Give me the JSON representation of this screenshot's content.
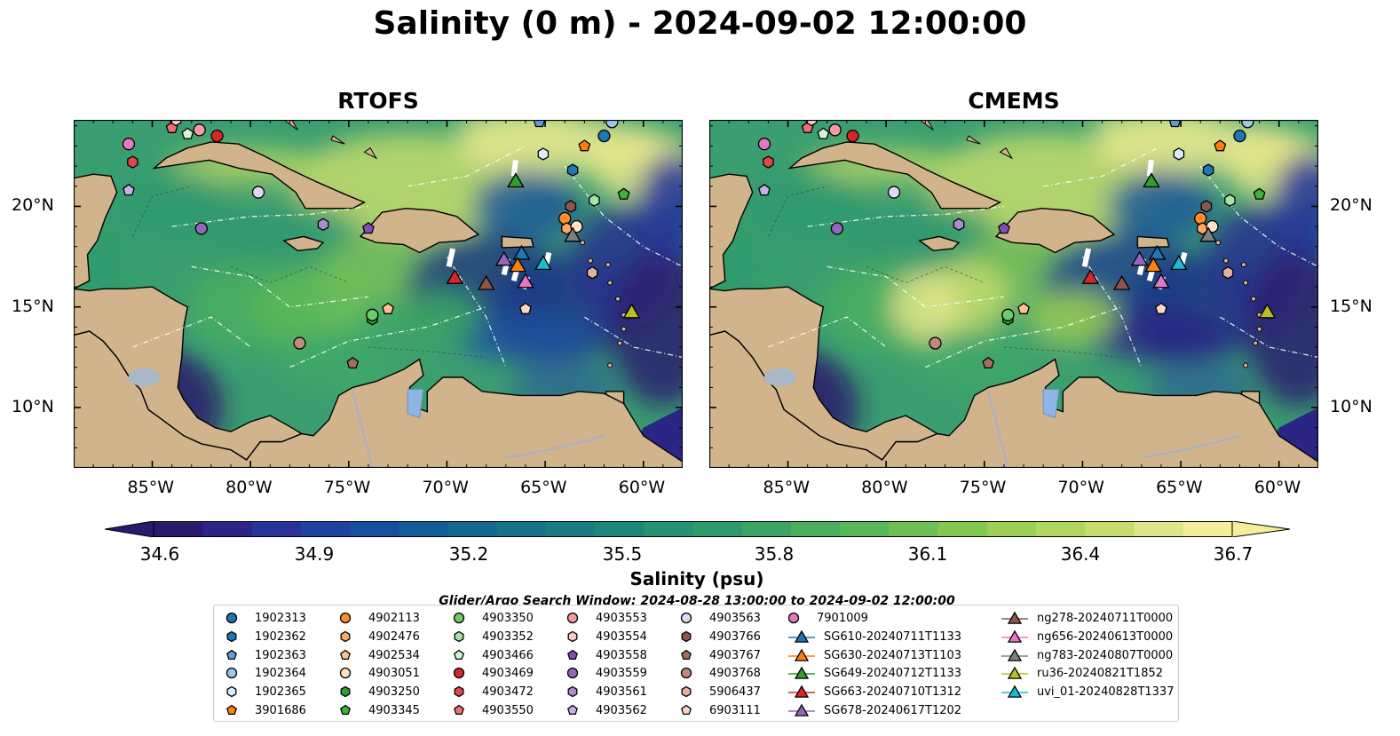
{
  "title": "Salinity (0 m) - 2024-09-02 12:00:00",
  "panels": [
    "RTOFS",
    "CMEMS"
  ],
  "colorbar": {
    "label": "Salinity (psu)",
    "ticks": [
      "34.6",
      "34.9",
      "35.2",
      "35.5",
      "35.8",
      "36.1",
      "36.4",
      "36.7"
    ],
    "colors": [
      "#2a1a6b",
      "#2b2585",
      "#27329a",
      "#1e43a3",
      "#174f9f",
      "#145c98",
      "#14688f",
      "#167286",
      "#1a7c80",
      "#1f877a",
      "#269173",
      "#2f9b6c",
      "#3ca564",
      "#4aae5e",
      "#5ab759",
      "#6ec055",
      "#84c851",
      "#9bcf55",
      "#b1d660",
      "#c7dd70",
      "#dde68a",
      "#f3ee9c"
    ]
  },
  "search_window": "Glider/Argo Search Window: 2024-08-28 13:00:00 to 2024-09-02 12:00:00",
  "chart_data": {
    "type": "heatmap",
    "variable": "Salinity",
    "units": "psu",
    "depth": "0 m",
    "time": "2024-09-02 12:00:00",
    "color_range": [
      34.6,
      36.7
    ],
    "extent": {
      "lon": [
        -89,
        -58
      ],
      "lat": [
        7,
        24.3
      ]
    },
    "lon_ticks": [
      "85°W",
      "80°W",
      "75°W",
      "70°W",
      "65°W",
      "60°W"
    ],
    "lat_ticks": [
      "20°N",
      "15°N",
      "10°N"
    ],
    "argo_floats": [
      {
        "id": "1902313",
        "lon": -62.0,
        "lat": 23.5
      },
      {
        "id": "1902362",
        "lon": -63.6,
        "lat": 21.8
      },
      {
        "id": "1902363",
        "lon": -65.3,
        "lat": 24.2
      },
      {
        "id": "1902364",
        "lon": -61.6,
        "lat": 24.2
      },
      {
        "id": "1902365",
        "lon": -65.1,
        "lat": 22.6
      },
      {
        "id": "3901686",
        "lon": -63.0,
        "lat": 23.0
      },
      {
        "id": "4902113",
        "lon": -64.0,
        "lat": 19.4
      },
      {
        "id": "4902476",
        "lon": -63.9,
        "lat": 18.9
      },
      {
        "id": "4902534",
        "lon": -73.0,
        "lat": 14.9
      },
      {
        "id": "4903051",
        "lon": -63.4,
        "lat": 19.0
      },
      {
        "id": "4903250",
        "lon": -73.8,
        "lat": 14.4
      },
      {
        "id": "4903345",
        "lon": -61.0,
        "lat": 20.6
      },
      {
        "id": "4903350",
        "lon": -73.8,
        "lat": 14.6
      },
      {
        "id": "4903352",
        "lon": -62.5,
        "lat": 20.3
      },
      {
        "id": "4903466",
        "lon": -83.2,
        "lat": 23.6
      },
      {
        "id": "4903469",
        "lon": -81.7,
        "lat": 23.5
      },
      {
        "id": "4903472",
        "lon": -86.0,
        "lat": 22.2
      },
      {
        "id": "4903550",
        "lon": -84.0,
        "lat": 23.9
      },
      {
        "id": "4903553",
        "lon": -82.6,
        "lat": 23.8
      },
      {
        "id": "4903554",
        "lon": -83.8,
        "lat": 24.3
      },
      {
        "id": "4903558",
        "lon": -74.0,
        "lat": 18.9
      },
      {
        "id": "4903559",
        "lon": -82.5,
        "lat": 18.9
      },
      {
        "id": "4903561",
        "lon": -76.3,
        "lat": 19.1
      },
      {
        "id": "4903562",
        "lon": -86.2,
        "lat": 20.8
      },
      {
        "id": "4903563",
        "lon": -79.6,
        "lat": 20.7
      },
      {
        "id": "4903766",
        "lon": -63.7,
        "lat": 20.0
      },
      {
        "id": "4903767",
        "lon": -74.8,
        "lat": 12.2
      },
      {
        "id": "4903768",
        "lon": -77.5,
        "lat": 13.2
      },
      {
        "id": "5906437",
        "lon": -62.6,
        "lat": 16.7
      },
      {
        "id": "6903111",
        "lon": -66.0,
        "lat": 14.9
      },
      {
        "id": "7901009",
        "lon": -86.2,
        "lat": 23.1
      }
    ],
    "gliders": [
      {
        "id": "SG610-20240711T1133",
        "lon": -66.2,
        "lat": 17.7
      },
      {
        "id": "SG630-20240713T1103",
        "lon": -66.4,
        "lat": 17.1
      },
      {
        "id": "SG649-20240712T1133",
        "lon": -66.5,
        "lat": 21.3
      },
      {
        "id": "SG663-20240710T1312",
        "lon": -69.6,
        "lat": 16.5
      },
      {
        "id": "SG678-20240617T1202",
        "lon": -67.1,
        "lat": 17.4
      },
      {
        "id": "ng278-20240711T0000",
        "lon": -68.0,
        "lat": 16.2
      },
      {
        "id": "ng656-20240613T0000",
        "lon": -66.0,
        "lat": 16.3
      },
      {
        "id": "ng783-20240807T0000",
        "lon": -63.6,
        "lat": 18.6
      },
      {
        "id": "ru36-20240821T1852",
        "lon": -60.6,
        "lat": 14.8
      },
      {
        "id": "uvi_01-20240828T1337",
        "lon": -65.1,
        "lat": 17.2
      }
    ]
  },
  "legend": {
    "items": [
      {
        "label": "1902313",
        "marker": "circle",
        "color": "#1f77b4"
      },
      {
        "label": "1902362",
        "marker": "hexagon",
        "color": "#1f77b4"
      },
      {
        "label": "1902363",
        "marker": "pentagon",
        "color": "#5d9fd7"
      },
      {
        "label": "1902364",
        "marker": "circle",
        "color": "#9ec7ea"
      },
      {
        "label": "1902365",
        "marker": "hexagon",
        "color": "#d9ecf8"
      },
      {
        "label": "3901686",
        "marker": "pentagon",
        "color": "#ff7f0e"
      },
      {
        "label": "4902113",
        "marker": "circle",
        "color": "#ff8c2a"
      },
      {
        "label": "4902476",
        "marker": "hexagon",
        "color": "#ffa862"
      },
      {
        "label": "4902534",
        "marker": "pentagon",
        "color": "#ffc28f"
      },
      {
        "label": "4903051",
        "marker": "circle",
        "color": "#ffe1c4"
      },
      {
        "label": "4903250",
        "marker": "hexagon",
        "color": "#2ca02c"
      },
      {
        "label": "4903345",
        "marker": "pentagon",
        "color": "#3cb33c"
      },
      {
        "label": "4903350",
        "marker": "circle",
        "color": "#6ccc6c"
      },
      {
        "label": "4903352",
        "marker": "hexagon",
        "color": "#a6e3a6"
      },
      {
        "label": "4903466",
        "marker": "pentagon",
        "color": "#d3f5d3"
      },
      {
        "label": "4903469",
        "marker": "circle",
        "color": "#d62728"
      },
      {
        "label": "4903472",
        "marker": "hexagon",
        "color": "#e0474a"
      },
      {
        "label": "4903550",
        "marker": "pentagon",
        "color": "#ee6f74"
      },
      {
        "label": "4903553",
        "marker": "circle",
        "color": "#f59aa0"
      },
      {
        "label": "4903554",
        "marker": "hexagon",
        "color": "#fbc9cc"
      },
      {
        "label": "4903558",
        "marker": "pentagon",
        "color": "#7f4fb8"
      },
      {
        "label": "4903559",
        "marker": "circle",
        "color": "#9467bd"
      },
      {
        "label": "4903561",
        "marker": "hexagon",
        "color": "#ad8bd3"
      },
      {
        "label": "4903562",
        "marker": "pentagon",
        "color": "#c6afe5"
      },
      {
        "label": "4903563",
        "marker": "circle",
        "color": "#e3d6f4"
      },
      {
        "label": "4903766",
        "marker": "hexagon",
        "color": "#8c564b"
      },
      {
        "label": "4903767",
        "marker": "pentagon",
        "color": "#a36e62"
      },
      {
        "label": "4903768",
        "marker": "circle",
        "color": "#c08b7e"
      },
      {
        "label": "5906437",
        "marker": "hexagon",
        "color": "#e2b09f"
      },
      {
        "label": "6903111",
        "marker": "pentagon",
        "color": "#fbd6c8"
      },
      {
        "label": "7901009",
        "marker": "circle",
        "color": "#e377c2"
      },
      {
        "label": "SG610-20240711T1133",
        "marker": "triangle",
        "color": "#1f77b4"
      },
      {
        "label": "SG630-20240713T1103",
        "marker": "triangle",
        "color": "#ff7f0e"
      },
      {
        "label": "SG649-20240712T1133",
        "marker": "triangle",
        "color": "#2ca02c"
      },
      {
        "label": "SG663-20240710T1312",
        "marker": "triangle",
        "color": "#d62728"
      },
      {
        "label": "SG678-20240617T1202",
        "marker": "triangle",
        "color": "#9467bd"
      },
      {
        "label": "ng278-20240711T0000",
        "marker": "triangle",
        "color": "#8c564b"
      },
      {
        "label": "ng656-20240613T0000",
        "marker": "triangle",
        "color": "#e377c2"
      },
      {
        "label": "ng783-20240807T0000",
        "marker": "triangle",
        "color": "#7f7f7f"
      },
      {
        "label": "ru36-20240821T1852",
        "marker": "triangle",
        "color": "#bcbd22"
      },
      {
        "label": "uvi_01-20240828T1337",
        "marker": "triangle",
        "color": "#17becf"
      }
    ]
  }
}
